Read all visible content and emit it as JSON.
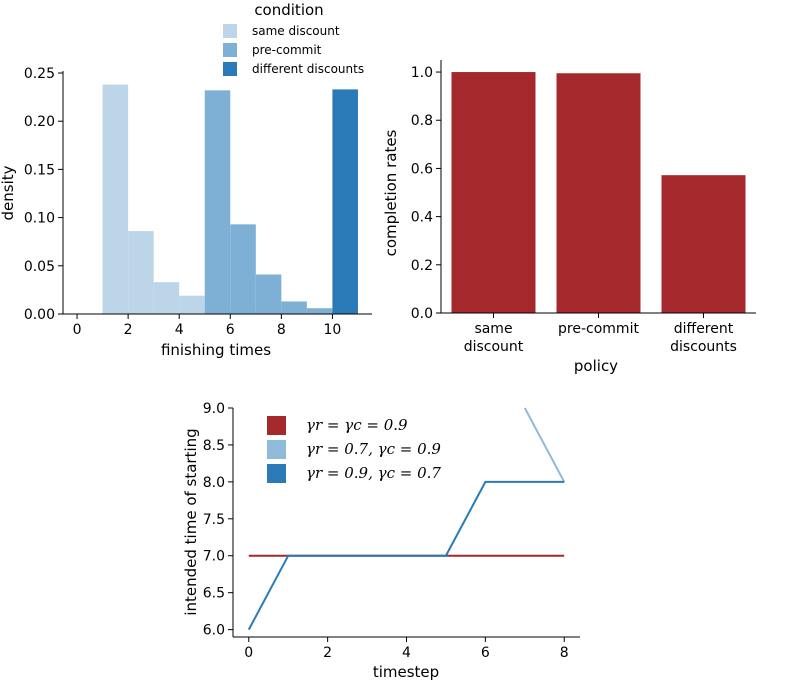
{
  "chart_data": [
    {
      "type": "bar",
      "subtype": "histogram",
      "xlabel": "finishing times",
      "ylabel": "density",
      "xlim": [
        -0.55,
        11.55
      ],
      "ylim": [
        0,
        0.25
      ],
      "xticks": [
        0,
        2,
        4,
        6,
        8,
        10
      ],
      "yticks": [
        0.0,
        0.05,
        0.1,
        0.15,
        0.2,
        0.25
      ],
      "ytick_labels": [
        "0.00",
        "0.05",
        "0.10",
        "0.15",
        "0.20",
        "0.25"
      ],
      "legend": {
        "title": "condition",
        "position": "top"
      },
      "series": [
        {
          "name": "same discount",
          "color": "#bcd5e9",
          "bins": [
            {
              "x0": 1,
              "x1": 2,
              "value": 0.238
            },
            {
              "x0": 2,
              "x1": 3,
              "value": 0.086
            },
            {
              "x0": 3,
              "x1": 4,
              "value": 0.033
            },
            {
              "x0": 4,
              "x1": 5,
              "value": 0.019
            },
            {
              "x0": 5,
              "x1": 6,
              "value": 0.005
            },
            {
              "x0": 6,
              "x1": 7,
              "value": 0.004
            },
            {
              "x0": 7,
              "x1": 8,
              "value": 0.003
            },
            {
              "x0": 8,
              "x1": 9,
              "value": 0.002
            },
            {
              "x0": 9,
              "x1": 10,
              "value": 0.001
            }
          ]
        },
        {
          "name": "pre-commit",
          "color": "#7eb0d6",
          "bins": [
            {
              "x0": 5,
              "x1": 6,
              "value": 0.232
            },
            {
              "x0": 6,
              "x1": 7,
              "value": 0.093
            },
            {
              "x0": 7,
              "x1": 8,
              "value": 0.041
            },
            {
              "x0": 8,
              "x1": 9,
              "value": 0.013
            },
            {
              "x0": 9,
              "x1": 10,
              "value": 0.006
            }
          ]
        },
        {
          "name": "different discounts",
          "color": "#2a7ab8",
          "bins": [
            {
              "x0": 10,
              "x1": 11,
              "value": 0.233
            }
          ]
        }
      ]
    },
    {
      "type": "bar",
      "xlabel": "policy",
      "ylabel": "completion rates",
      "categories": [
        "same\ndiscount",
        "pre-commit",
        "different\ndiscounts"
      ],
      "values": [
        1.0,
        0.995,
        0.572
      ],
      "color": "#a5282c",
      "ylim": [
        0,
        1.05
      ],
      "yticks": [
        0.0,
        0.2,
        0.4,
        0.6,
        0.8,
        1.0
      ],
      "ytick_labels": [
        "0.0",
        "0.2",
        "0.4",
        "0.6",
        "0.8",
        "1.0"
      ]
    },
    {
      "type": "line",
      "xlabel": "timestep",
      "ylabel": "intended time of starting",
      "xlim": [
        -0.4,
        8.4
      ],
      "ylim": [
        5.9,
        9.0
      ],
      "xticks": [
        0,
        2,
        4,
        6,
        8
      ],
      "yticks": [
        6.0,
        6.5,
        7.0,
        7.5,
        8.0,
        8.5,
        9.0
      ],
      "ytick_labels": [
        "6.0",
        "6.5",
        "7.0",
        "7.5",
        "8.0",
        "8.5",
        "9.0"
      ],
      "legend": {
        "position": "top-left"
      },
      "series": [
        {
          "name": "γr = γc = 0.9",
          "color": "#a5282c",
          "x": [
            0,
            1,
            2,
            3,
            4,
            5,
            6,
            7,
            8
          ],
          "y": [
            7,
            7,
            7,
            7,
            7,
            7,
            7,
            7,
            7
          ]
        },
        {
          "name": "γr = 0.7, γc = 0.9",
          "color": "#8fbbdb",
          "x": [
            0,
            1,
            2,
            3,
            4,
            5,
            6,
            7,
            8
          ],
          "y": [
            null,
            null,
            null,
            null,
            null,
            null,
            null,
            9.0,
            8.0
          ]
        },
        {
          "name": "γr = 0.9, γc = 0.7",
          "color": "#2a7ab8",
          "x": [
            0,
            1,
            2,
            3,
            4,
            5,
            6,
            7,
            8
          ],
          "y": [
            6,
            7,
            7,
            7,
            7,
            7,
            8,
            8,
            8
          ]
        }
      ]
    }
  ]
}
